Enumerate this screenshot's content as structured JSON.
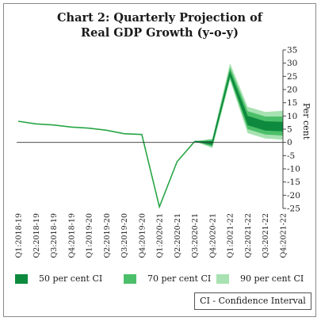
{
  "colors": {
    "ci50": "#0e8a3e",
    "ci70": "#4cbf6a",
    "ci90": "#a8e2b2",
    "line": "#27a646",
    "axis": "#333333"
  },
  "note": "CI - Confidence Interval",
  "chart_data": {
    "type": "line",
    "title": "Chart 2: Quarterly Projection of Real GDP Growth (y-o-y)",
    "title_lines": [
      "Chart 2: Quarterly Projection of",
      "Real GDP Growth (y-o-y)"
    ],
    "ylabel": "Per cent",
    "xlabel": "",
    "ylim": [
      -25,
      35
    ],
    "yticks": [
      35,
      30,
      25,
      20,
      15,
      10,
      5,
      0,
      -5,
      -10,
      -15,
      -20,
      -25
    ],
    "grid": false,
    "legend_position": "bottom",
    "categories": [
      "Q1:2018-19",
      "Q2:2018-19",
      "Q3:2018-19",
      "Q4:2018-19",
      "Q1:2019-20",
      "Q2:2019-20",
      "Q3:2019-20",
      "Q4:2019-20",
      "Q1:2020-21",
      "Q2:2020-21",
      "Q3:2020-21",
      "Q4:2020-21",
      "Q1:2021-22",
      "Q2:2021-22",
      "Q3:2021-22",
      "Q4:2021-22"
    ],
    "series": [
      {
        "values": [
          8.0,
          7.0,
          6.6,
          5.8,
          5.4,
          4.6,
          3.3,
          3.0,
          -24.4,
          -7.3,
          0.4,
          null,
          null,
          null,
          null,
          null
        ]
      }
    ],
    "projection": {
      "start_index": 10,
      "central": [
        0.4,
        0.0,
        26.2,
        8.3,
        6.2,
        6.0
      ]
    },
    "bands": [
      {
        "name": "50 per cent CI",
        "upper": [
          0.4,
          0.5,
          27.0,
          10.0,
          8.0,
          7.8
        ],
        "lower": [
          0.4,
          -1.0,
          25.0,
          6.5,
          4.5,
          4.2
        ]
      },
      {
        "name": "70 per cent CI",
        "upper": [
          0.4,
          1.0,
          28.5,
          11.8,
          9.8,
          9.8
        ],
        "lower": [
          0.4,
          -1.6,
          24.3,
          5.0,
          3.0,
          2.6
        ]
      },
      {
        "name": "90 per cent CI",
        "upper": [
          0.4,
          1.4,
          30.0,
          13.5,
          11.5,
          12.0
        ],
        "lower": [
          0.4,
          -2.1,
          23.5,
          3.5,
          1.5,
          1.0
        ]
      }
    ]
  }
}
